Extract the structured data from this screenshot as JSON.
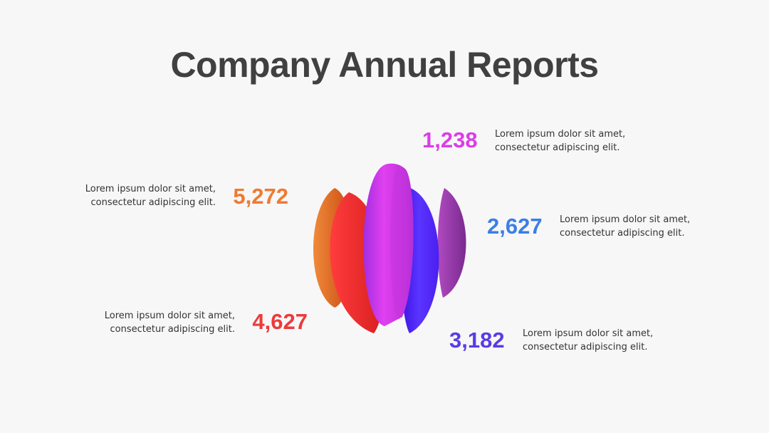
{
  "header": {
    "title": "Company Annual Reports"
  },
  "items": [
    {
      "value": "1,238",
      "color": "#d93ee6",
      "lines": [
        "Lorem ipsum dolor sit amet,",
        "consectetur adipiscing elit."
      ],
      "side": "right"
    },
    {
      "value": "5,272",
      "color": "#ef7a32",
      "lines": [
        "Lorem ipsum dolor sit amet,",
        "consectetur adipiscing elit."
      ],
      "side": "left"
    },
    {
      "value": "2,627",
      "color": "#3b7fe6",
      "lines": [
        "Lorem ipsum dolor sit amet,",
        "consectetur adipiscing elit."
      ],
      "side": "right"
    },
    {
      "value": "4,627",
      "color": "#ec3b3b",
      "lines": [
        "Lorem ipsum dolor sit amet,",
        "consectetur adipiscing elit."
      ],
      "side": "left"
    },
    {
      "value": "3,182",
      "color": "#5a3ce6",
      "lines": [
        "Lorem ipsum dolor sit amet,",
        "consectetur adipiscing elit."
      ],
      "side": "right"
    }
  ]
}
